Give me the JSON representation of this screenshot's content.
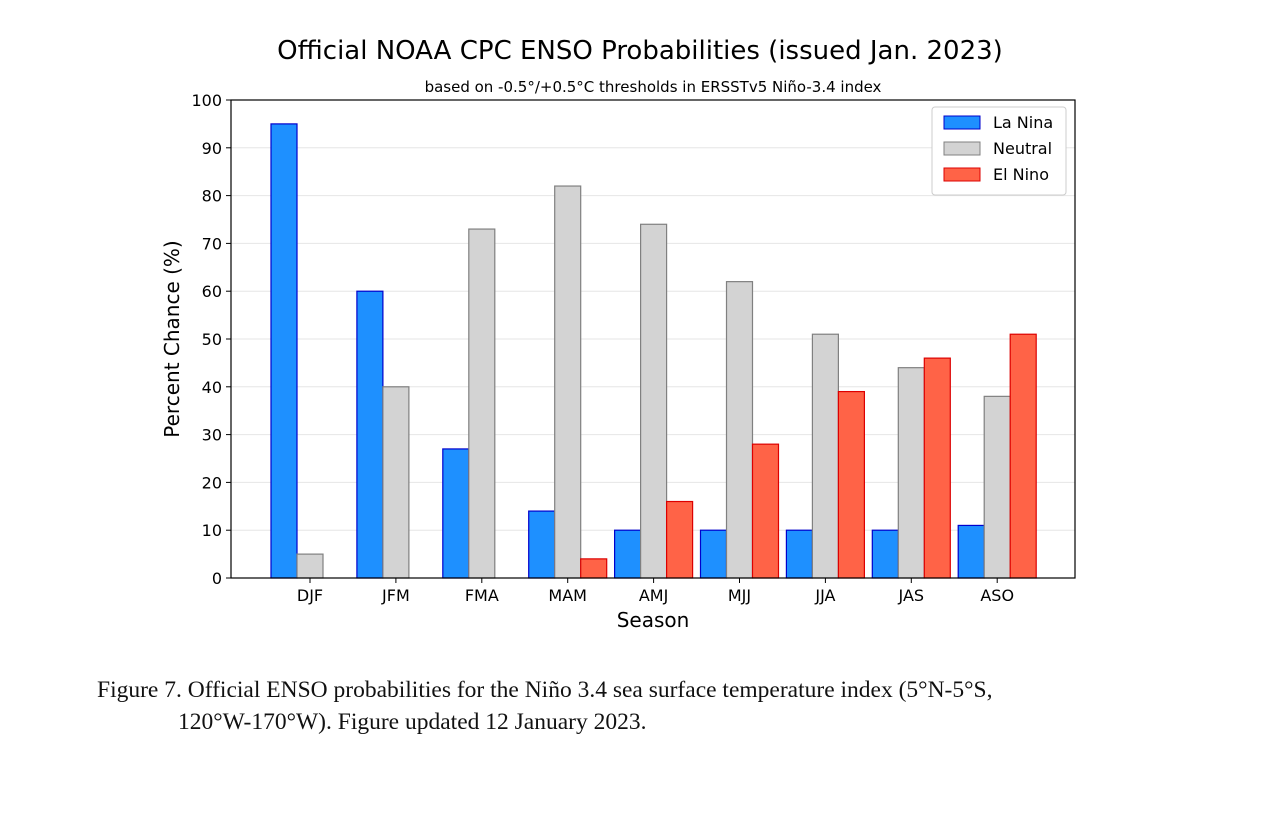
{
  "chart_data": {
    "type": "bar",
    "title": "Official NOAA CPC ENSO Probabilities (issued Jan. 2023)",
    "subtitle": "based on -0.5°/+0.5°C thresholds in ERSSTv5 Niño-3.4 index",
    "xlabel": "Season",
    "ylabel": "Percent Chance (%)",
    "ylim": [
      0,
      100
    ],
    "yticks": [
      0,
      10,
      20,
      30,
      40,
      50,
      60,
      70,
      80,
      90,
      100
    ],
    "grid": true,
    "legend_position": "top-right",
    "categories": [
      "DJF",
      "JFM",
      "FMA",
      "MAM",
      "AMJ",
      "MJJ",
      "JJA",
      "JAS",
      "ASO"
    ],
    "series": [
      {
        "name": "La Nina",
        "color": "#1E90FF",
        "edge": "#0000CD",
        "values": [
          95,
          60,
          27,
          14,
          10,
          10,
          10,
          10,
          11
        ]
      },
      {
        "name": "Neutral",
        "color": "#D3D3D3",
        "edge": "#808080",
        "values": [
          5,
          40,
          73,
          82,
          74,
          62,
          51,
          44,
          38
        ]
      },
      {
        "name": "El Nino",
        "color": "#FF6347",
        "edge": "#DD0000",
        "values": [
          0,
          0,
          0,
          4,
          16,
          28,
          39,
          46,
          51
        ]
      }
    ]
  },
  "caption": {
    "line1": "Figure 7. Official ENSO probabilities for the Niño 3.4 sea surface temperature index (5°N-5°S,",
    "line2": "120°W-170°W). Figure updated 12 January 2023."
  }
}
